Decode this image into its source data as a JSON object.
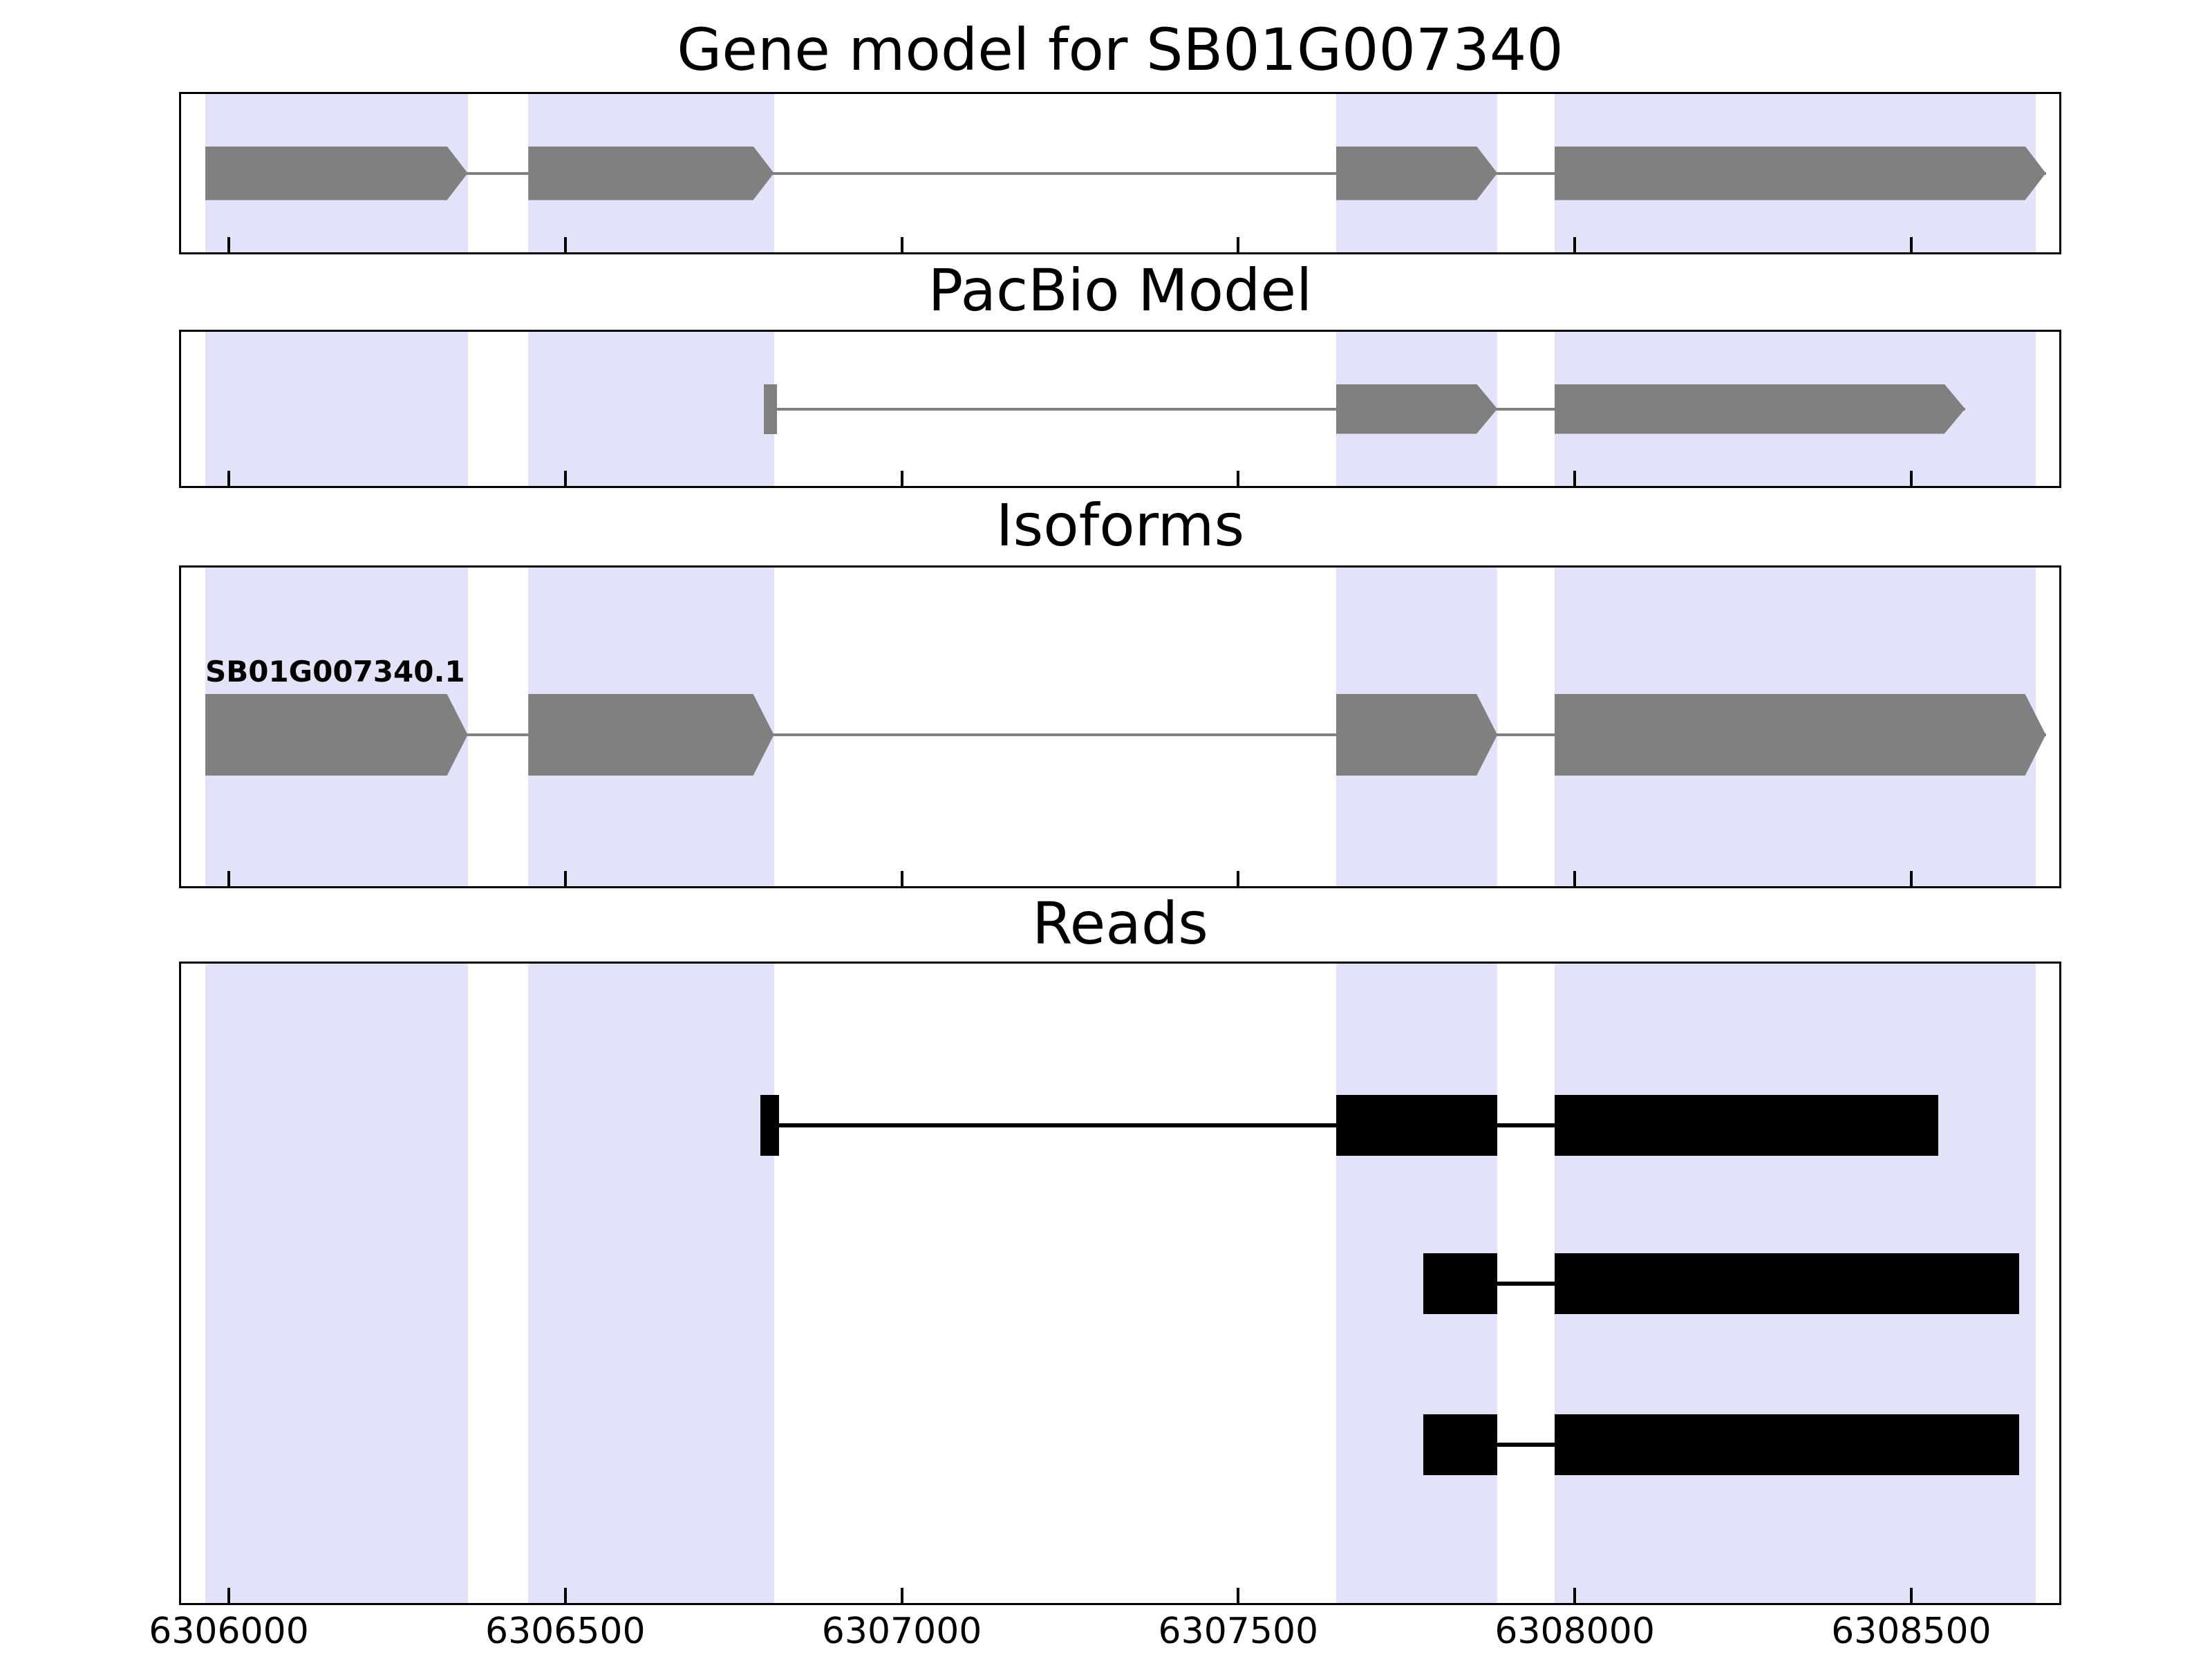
{
  "chart_data": {
    "type": "gene-model-tracks",
    "x_axis": {
      "range": [
        6305926,
        6308723
      ],
      "ticks": [
        6306000,
        6306500,
        6307000,
        6307500,
        6308000,
        6308500
      ],
      "tick_labels": [
        "6306000",
        "6306500",
        "6307000",
        "6307500",
        "6308000",
        "6308500"
      ]
    },
    "band_color": "#e2e2f8",
    "highlight_bands": [
      [
        6305965,
        6306355
      ],
      [
        6306445,
        6306810
      ],
      [
        6307645,
        6307885
      ],
      [
        6307970,
        6308685
      ]
    ],
    "panels": [
      {
        "title": "Gene model for SB01G007340",
        "features": [
          {
            "type": "transcript",
            "color": "#808080",
            "strand": "+",
            "exons": [
              [
                6305965,
                6306355
              ],
              [
                6306445,
                6306810
              ],
              [
                6307645,
                6307885
              ],
              [
                6307970,
                6308700
              ]
            ]
          }
        ]
      },
      {
        "title": "PacBio Model",
        "features": [
          {
            "type": "transcript",
            "color": "#808080",
            "strand": "+",
            "exons": [
              [
                6306795,
                6306815
              ],
              [
                6307645,
                6307885
              ],
              [
                6307970,
                6308580
              ]
            ]
          }
        ]
      },
      {
        "title": "Isoforms",
        "features": [
          {
            "type": "transcript",
            "label": "SB01G007340.1",
            "color": "#808080",
            "strand": "+",
            "exons": [
              [
                6305965,
                6306355
              ],
              [
                6306445,
                6306810
              ],
              [
                6307645,
                6307885
              ],
              [
                6307970,
                6308700
              ]
            ]
          }
        ]
      },
      {
        "title": "Reads",
        "features": [
          {
            "type": "read",
            "color": "#000000",
            "exons": [
              [
                6306790,
                6306818
              ],
              [
                6307645,
                6307885
              ],
              [
                6307970,
                6308540
              ]
            ]
          },
          {
            "type": "read",
            "color": "#000000",
            "exons": [
              [
                6307775,
                6307885
              ],
              [
                6307970,
                6308660
              ]
            ]
          },
          {
            "type": "read",
            "color": "#000000",
            "exons": [
              [
                6307775,
                6307885
              ],
              [
                6307970,
                6308660
              ]
            ]
          }
        ]
      }
    ]
  }
}
